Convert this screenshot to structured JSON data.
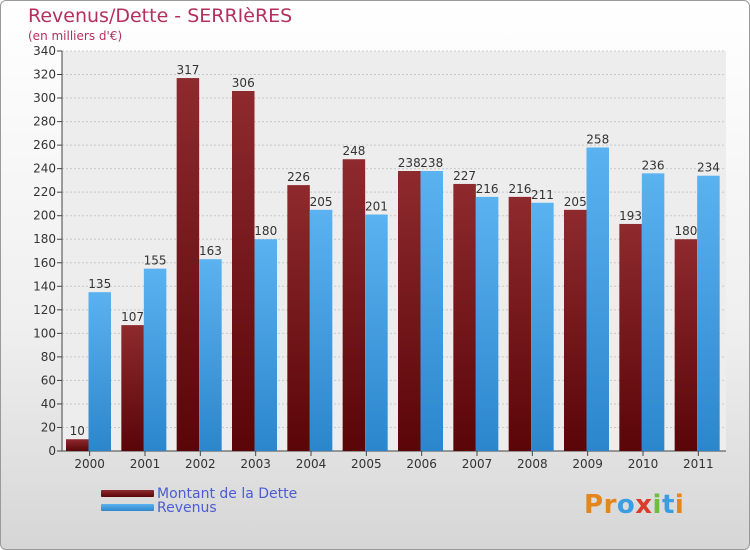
{
  "header": {
    "title": "Revenus/Dette - SERRIèRES",
    "subtitle": "(en milliers d'€)"
  },
  "colors": {
    "title": "#b3305c",
    "debt": "#7a1418",
    "revenue": "#3a9ee4",
    "legend_text": "#4b5cd6"
  },
  "legend": {
    "items": [
      {
        "label": "Montant de la Dette",
        "color": "#6a0f12"
      },
      {
        "label": "Revenus",
        "color": "#3a9ee4"
      }
    ]
  },
  "logo": {
    "text": "Proxiti",
    "letter_colors": [
      "#e2861e",
      "#e2861e",
      "#3a9ee4",
      "#d93c2c",
      "#6bbf3a",
      "#3a9ee4",
      "#e2861e"
    ]
  },
  "chart_data": {
    "type": "bar",
    "categories": [
      "2000",
      "2001",
      "2002",
      "2003",
      "2004",
      "2005",
      "2006",
      "2007",
      "2008",
      "2009",
      "2010",
      "2011"
    ],
    "series": [
      {
        "name": "Montant de la Dette",
        "values": [
          10,
          107,
          317,
          306,
          226,
          248,
          238,
          227,
          216,
          205,
          193,
          180
        ]
      },
      {
        "name": "Revenus",
        "values": [
          135,
          155,
          163,
          180,
          205,
          201,
          238,
          216,
          211,
          258,
          236,
          234
        ]
      }
    ],
    "ylim": [
      0,
      340
    ],
    "yticks": [
      0,
      20,
      40,
      60,
      80,
      100,
      120,
      140,
      160,
      180,
      200,
      220,
      240,
      260,
      280,
      300,
      320,
      340
    ],
    "grid": true,
    "xlabel": "",
    "ylabel": ""
  }
}
